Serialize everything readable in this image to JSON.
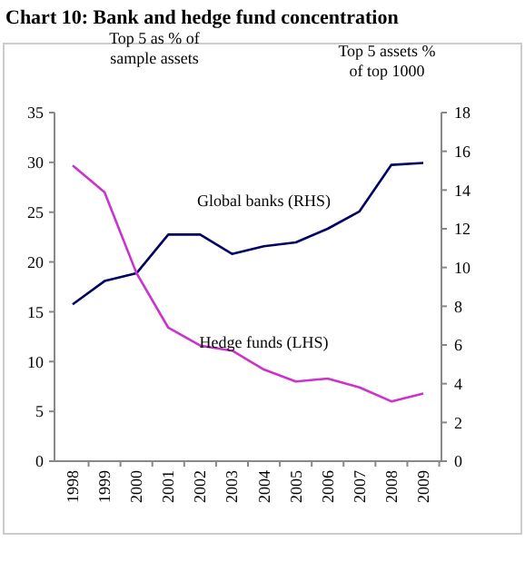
{
  "chart_data": {
    "type": "line",
    "title": "Chart 10: Bank and hedge fund concentration",
    "ylabel": "Top 5 as % of sample assets",
    "y2label": "Top 5 assets % of top 1000",
    "categories": [
      "1998",
      "1999",
      "2000",
      "2001",
      "2002",
      "2003",
      "2004",
      "2005",
      "2006",
      "2007",
      "2008",
      "2009"
    ],
    "series": [
      {
        "name": "Global banks (RHS)",
        "color": "#000066",
        "axis": "y2",
        "values": [
          8.1,
          9.3,
          9.7,
          11.7,
          11.7,
          10.7,
          11.1,
          11.3,
          12.0,
          12.9,
          15.3,
          15.4
        ]
      },
      {
        "name": "Hedge funds (LHS)",
        "color": "#cc33cc",
        "values": [
          29.7,
          27,
          18.9,
          13.4,
          11.6,
          11.1,
          9.2,
          8.0,
          8.3,
          7.4,
          6.0,
          6.8
        ]
      }
    ],
    "ylim": [
      0,
      35
    ],
    "yticks": [
      0,
      5,
      10,
      15,
      20,
      25,
      30,
      35
    ],
    "y2lim": [
      0,
      18
    ],
    "y2ticks": [
      0,
      2,
      4,
      6,
      8,
      10,
      12,
      14,
      16,
      18
    ],
    "legend": false,
    "grid": false
  }
}
